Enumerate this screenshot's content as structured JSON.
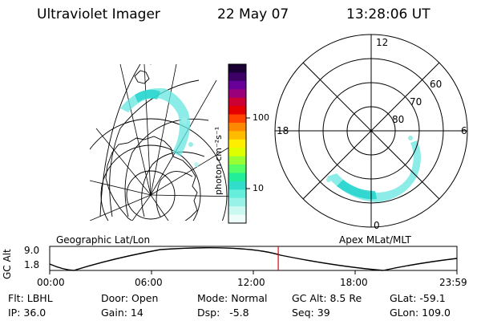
{
  "header": {
    "instrument": "Ultraviolet Imager",
    "date": "22 May 07",
    "time": "13:28:06 UT"
  },
  "colorbar": {
    "unit_label": "photon cm⁻²s⁻¹",
    "ticks": [
      "100",
      "10"
    ],
    "colors": [
      "#1a0033",
      "#3d0066",
      "#660099",
      "#99007a",
      "#cc0033",
      "#e60000",
      "#ff4400",
      "#ff8800",
      "#ffbb00",
      "#ffee00",
      "#ddff00",
      "#99ff33",
      "#55ff66",
      "#22ee99",
      "#33ddcc",
      "#66eedd",
      "#99f2e8",
      "#ccf8f2",
      "#eefcfa"
    ]
  },
  "polar_plot": {
    "mlt_labels": [
      "12",
      "18",
      "6",
      "0"
    ],
    "lat_labels": [
      "60",
      "70",
      "80"
    ]
  },
  "altitude_panel": {
    "left_title": "Geographic Lat/Lon",
    "right_title": "Apex MLat/MLT",
    "axis_label": "GC Alt",
    "y_ticks": [
      "9.0",
      "1.8"
    ],
    "x_ticks": [
      "00:00",
      "06:00",
      "12:00",
      "18:00",
      "23:59"
    ],
    "current_time_fraction": 0.5612
  },
  "info": {
    "row1": {
      "flt": "Flt: LBHL",
      "door": "Door: Open",
      "mode": "Mode: Normal",
      "gcalt": "GC Alt: 8.5 Re",
      "glat": "GLat: -59.1"
    },
    "row2": {
      "ip": "IP: 36.0",
      "gain": "Gain: 14",
      "dsp": "Dsp:   -5.8",
      "seq": "Seq: 39",
      "glon": "GLon: 109.0"
    }
  }
}
